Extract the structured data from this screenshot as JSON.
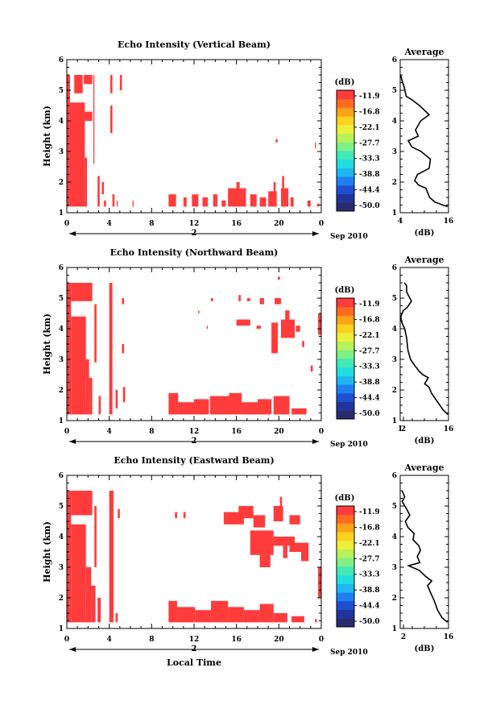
{
  "figure": {
    "x_axis_title": "Local Time",
    "date_label": "Sep 2010",
    "day_label": "2"
  },
  "colors": {
    "echo": "#ff3b3b",
    "colorbar": [
      "#2a2a6e",
      "#22339a",
      "#1f4fd0",
      "#1f7ff0",
      "#1fb6f2",
      "#20dde0",
      "#3fe9b8",
      "#7ff088",
      "#b7f25a",
      "#eaf03a",
      "#ffd21f",
      "#ffa21a",
      "#ff6a1f",
      "#ff3b3b"
    ]
  },
  "chart_data": [
    {
      "type": "heatmap",
      "title": "Echo Intensity (Vertical Beam)",
      "xlabel": "Local Time",
      "ylabel": "Height (km)",
      "xlim": [
        0,
        24
      ],
      "ylim": [
        1,
        6
      ],
      "x_ticks": [
        "0",
        "4",
        "8",
        "12",
        "16",
        "20",
        "0"
      ],
      "y_ticks": [
        "1",
        "2",
        "3",
        "4",
        "5",
        "6"
      ],
      "colorbar": {
        "label": "(dB)",
        "ticks": [
          "-11.9",
          "-16.8",
          "-22.1",
          "-27.7",
          "-33.3",
          "-38.8",
          "-44.4",
          "-50.0"
        ]
      },
      "echo_blocks": [
        [
          0,
          0.3,
          1.2,
          5.5
        ],
        [
          0.3,
          1.7,
          1.2,
          4.6
        ],
        [
          1.7,
          1.9,
          1.2,
          2.8
        ],
        [
          1.7,
          2.4,
          4.0,
          4.3
        ],
        [
          1.6,
          2.4,
          5.2,
          5.5
        ],
        [
          0.7,
          1.5,
          4.9,
          5.5
        ],
        [
          2.5,
          2.6,
          2.6,
          5.5
        ],
        [
          2.9,
          3.1,
          1.2,
          2.2
        ],
        [
          3.3,
          3.5,
          1.6,
          2.0
        ],
        [
          4.1,
          4.3,
          4.9,
          5.5
        ],
        [
          4.1,
          4.3,
          3.6,
          4.5
        ],
        [
          5.0,
          5.2,
          5.0,
          5.5
        ],
        [
          3.5,
          3.7,
          1.2,
          1.4
        ],
        [
          4.3,
          4.5,
          1.2,
          1.6
        ],
        [
          4.7,
          4.8,
          1.2,
          1.4
        ],
        [
          6.2,
          6.3,
          1.2,
          1.4
        ],
        [
          9.6,
          10.3,
          1.2,
          1.6
        ],
        [
          11.0,
          11.3,
          1.2,
          1.5
        ],
        [
          11.8,
          12.4,
          1.2,
          1.6
        ],
        [
          12.8,
          13.3,
          1.2,
          1.5
        ],
        [
          13.8,
          14.2,
          1.2,
          1.6
        ],
        [
          14.6,
          15.0,
          1.2,
          1.4
        ],
        [
          15.2,
          16.9,
          1.2,
          1.8
        ],
        [
          16.0,
          16.3,
          1.6,
          2.0
        ],
        [
          17.3,
          17.9,
          1.2,
          1.6
        ],
        [
          18.2,
          18.8,
          1.2,
          1.5
        ],
        [
          19.0,
          19.8,
          1.2,
          1.7
        ],
        [
          19.5,
          19.7,
          1.7,
          2.0
        ],
        [
          20.2,
          20.9,
          1.2,
          1.8
        ],
        [
          20.3,
          20.5,
          1.8,
          2.2
        ],
        [
          21.1,
          21.4,
          1.2,
          1.5
        ],
        [
          22.7,
          23.0,
          1.2,
          1.4
        ],
        [
          23.6,
          23.8,
          1.2,
          1.3
        ],
        [
          19.7,
          19.9,
          3.3,
          3.4
        ],
        [
          23.4,
          23.5,
          3.1,
          3.3
        ]
      ]
    },
    {
      "type": "heatmap",
      "title": "Echo Intensity (Northward Beam)",
      "xlabel": "Local Time",
      "ylabel": "Height (km)",
      "xlim": [
        0,
        24
      ],
      "ylim": [
        1,
        6
      ],
      "x_ticks": [
        "0",
        "4",
        "8",
        "12",
        "16",
        "20",
        "0"
      ],
      "y_ticks": [
        "1",
        "2",
        "3",
        "4",
        "5",
        "6"
      ],
      "colorbar": {
        "label": "(dB)",
        "ticks": [
          "-11.9",
          "-16.8",
          "-22.1",
          "-27.7",
          "-33.3",
          "-38.8",
          "-44.4",
          "-50.0"
        ]
      },
      "echo_blocks": [
        [
          0,
          0.4,
          1.2,
          5.5
        ],
        [
          0.4,
          1.8,
          1.2,
          4.4
        ],
        [
          0.4,
          2.4,
          4.9,
          5.5
        ],
        [
          1.8,
          2.1,
          1.2,
          3.0
        ],
        [
          2.1,
          2.4,
          1.2,
          2.4
        ],
        [
          2.6,
          2.8,
          2.9,
          4.8
        ],
        [
          3.0,
          3.2,
          1.2,
          1.8
        ],
        [
          4.0,
          4.3,
          1.2,
          5.5
        ],
        [
          4.6,
          4.8,
          1.4,
          2.0
        ],
        [
          5.3,
          5.5,
          1.6,
          2.1
        ],
        [
          5.2,
          5.4,
          4.8,
          5.0
        ],
        [
          5.2,
          5.4,
          3.2,
          3.5
        ],
        [
          9.6,
          10.5,
          1.2,
          1.9
        ],
        [
          10.5,
          12.0,
          1.2,
          1.6
        ],
        [
          12.0,
          13.4,
          1.2,
          1.7
        ],
        [
          13.5,
          15.3,
          1.2,
          1.8
        ],
        [
          15.3,
          16.5,
          1.2,
          1.9
        ],
        [
          16.5,
          18.0,
          1.2,
          1.6
        ],
        [
          18.0,
          19.3,
          1.2,
          1.7
        ],
        [
          19.5,
          21.0,
          1.2,
          1.8
        ],
        [
          21.2,
          22.6,
          1.2,
          1.4
        ],
        [
          19.6,
          20.2,
          4.8,
          5.0
        ],
        [
          17.0,
          17.3,
          4.9,
          5.0
        ],
        [
          18.2,
          18.6,
          4.8,
          5.0
        ],
        [
          16.2,
          16.4,
          4.9,
          5.1
        ],
        [
          13.6,
          13.8,
          4.9,
          5.0
        ],
        [
          12.4,
          12.5,
          4.5,
          4.6
        ],
        [
          13.2,
          13.3,
          4.0,
          4.1
        ],
        [
          16.0,
          17.3,
          4.1,
          4.3
        ],
        [
          17.9,
          18.3,
          4.0,
          4.1
        ],
        [
          19.3,
          19.9,
          3.2,
          4.2
        ],
        [
          20.2,
          21.5,
          3.7,
          4.3
        ],
        [
          21.6,
          22.0,
          3.9,
          4.1
        ],
        [
          20.6,
          21.0,
          4.3,
          4.6
        ],
        [
          23.7,
          24.0,
          3.8,
          4.5
        ],
        [
          22.2,
          22.4,
          3.4,
          3.6
        ],
        [
          23.0,
          23.2,
          2.6,
          2.8
        ],
        [
          19.9,
          20.1,
          5.6,
          5.7
        ]
      ]
    },
    {
      "type": "heatmap",
      "title": "Echo Intensity (Eastward Beam)",
      "xlabel": "Local Time",
      "ylabel": "Height (km)",
      "xlim": [
        0,
        24
      ],
      "ylim": [
        1,
        6
      ],
      "x_ticks": [
        "0",
        "4",
        "8",
        "12",
        "16",
        "20",
        "0"
      ],
      "y_ticks": [
        "1",
        "2",
        "3",
        "4",
        "5",
        "6"
      ],
      "colorbar": {
        "label": "(dB)",
        "ticks": [
          "-11.9",
          "-16.8",
          "-22.1",
          "-27.7",
          "-33.3",
          "-38.8",
          "-44.4",
          "-50.0"
        ]
      },
      "echo_blocks": [
        [
          0,
          0.4,
          1.2,
          5.5
        ],
        [
          0.4,
          1.8,
          1.2,
          4.4
        ],
        [
          0.4,
          2.4,
          4.7,
          5.5
        ],
        [
          1.8,
          2.3,
          1.2,
          3.0
        ],
        [
          2.3,
          2.7,
          1.2,
          2.4
        ],
        [
          2.6,
          2.8,
          3.0,
          5.0
        ],
        [
          2.9,
          3.2,
          1.2,
          2.0
        ],
        [
          4.0,
          4.4,
          1.2,
          5.5
        ],
        [
          4.8,
          5.0,
          4.6,
          4.9
        ],
        [
          4.6,
          4.8,
          1.2,
          1.5
        ],
        [
          9.6,
          10.4,
          1.2,
          1.9
        ],
        [
          10.4,
          12.1,
          1.2,
          1.7
        ],
        [
          12.1,
          13.6,
          1.2,
          1.6
        ],
        [
          13.6,
          15.2,
          1.2,
          1.9
        ],
        [
          15.2,
          16.7,
          1.2,
          1.7
        ],
        [
          16.7,
          18.2,
          1.2,
          1.6
        ],
        [
          18.2,
          19.5,
          1.2,
          1.8
        ],
        [
          19.5,
          20.8,
          1.2,
          1.5
        ],
        [
          21.2,
          22.4,
          1.2,
          1.4
        ],
        [
          23.4,
          23.6,
          1.2,
          1.3
        ],
        [
          10.2,
          10.4,
          4.6,
          4.8
        ],
        [
          11.0,
          11.2,
          4.6,
          4.8
        ],
        [
          14.8,
          16.7,
          4.4,
          4.8
        ],
        [
          16.2,
          17.6,
          4.6,
          5.0
        ],
        [
          17.6,
          18.7,
          4.3,
          4.7
        ],
        [
          19.5,
          20.4,
          4.5,
          5.0
        ],
        [
          20.1,
          20.3,
          4.9,
          5.3
        ],
        [
          21.0,
          22.0,
          4.4,
          4.7
        ],
        [
          17.3,
          19.5,
          3.4,
          4.2
        ],
        [
          19.5,
          21.5,
          3.7,
          4.0
        ],
        [
          21.0,
          22.8,
          3.5,
          3.8
        ],
        [
          22.1,
          22.8,
          3.2,
          3.5
        ],
        [
          18.2,
          19.2,
          3.0,
          3.4
        ],
        [
          20.4,
          20.8,
          3.3,
          3.7
        ],
        [
          23.7,
          24.0,
          2.0,
          3.0
        ]
      ]
    },
    {
      "type": "line",
      "title": "Average",
      "xlabel": "(dB)",
      "ylabel": "",
      "xlim": [
        4,
        16
      ],
      "ylim": [
        1,
        6
      ],
      "x_ticks": [
        "4",
        "16"
      ],
      "y_ticks": [
        "1",
        "2",
        "3",
        "4",
        "5",
        "6"
      ],
      "points": [
        [
          4.1,
          5.5
        ],
        [
          4.5,
          5.3
        ],
        [
          5.0,
          5.1
        ],
        [
          5.5,
          4.8
        ],
        [
          6.8,
          4.7
        ],
        [
          8.8,
          4.5
        ],
        [
          11.2,
          4.2
        ],
        [
          9.1,
          4.0
        ],
        [
          7.8,
          3.7
        ],
        [
          8.5,
          3.5
        ],
        [
          6.0,
          3.35
        ],
        [
          6.9,
          3.15
        ],
        [
          9.2,
          3.0
        ],
        [
          11.5,
          2.75
        ],
        [
          11.2,
          2.45
        ],
        [
          8.3,
          2.25
        ],
        [
          7.6,
          2.05
        ],
        [
          8.6,
          1.9
        ],
        [
          10.4,
          1.8
        ],
        [
          11.3,
          1.5
        ],
        [
          12.6,
          1.35
        ],
        [
          14.6,
          1.25
        ],
        [
          15.8,
          1.2
        ]
      ]
    },
    {
      "type": "line",
      "title": "Average",
      "xlabel": "(dB)",
      "ylabel": "",
      "xlim": [
        1,
        16
      ],
      "ylim": [
        1,
        6
      ],
      "x_ticks": [
        "1",
        "2",
        "16"
      ],
      "y_ticks": [
        "1",
        "2",
        "3",
        "4",
        "5",
        "6"
      ],
      "points": [
        [
          2.3,
          5.5
        ],
        [
          3.0,
          5.4
        ],
        [
          3.0,
          5.2
        ],
        [
          4.5,
          4.9
        ],
        [
          3.2,
          4.7
        ],
        [
          2.0,
          4.6
        ],
        [
          1.2,
          4.4
        ],
        [
          1.5,
          4.2
        ],
        [
          2.4,
          4.0
        ],
        [
          3.0,
          3.7
        ],
        [
          3.4,
          3.3
        ],
        [
          4.2,
          3.0
        ],
        [
          5.5,
          2.8
        ],
        [
          7.0,
          2.6
        ],
        [
          8.0,
          2.5
        ],
        [
          9.7,
          2.4
        ],
        [
          8.6,
          2.2
        ],
        [
          9.9,
          2.1
        ],
        [
          10.7,
          1.9
        ],
        [
          12.0,
          1.7
        ],
        [
          13.0,
          1.55
        ],
        [
          14.3,
          1.35
        ],
        [
          15.8,
          1.2
        ]
      ]
    },
    {
      "type": "line",
      "title": "Average",
      "xlabel": "(dB)",
      "ylabel": "",
      "xlim": [
        1,
        16
      ],
      "ylim": [
        1,
        6
      ],
      "x_ticks": [
        "2",
        "16"
      ],
      "y_ticks": [
        "1",
        "2",
        "3",
        "4",
        "5",
        "6"
      ],
      "points": [
        [
          1.6,
          5.5
        ],
        [
          2.4,
          5.3
        ],
        [
          1.6,
          5.15
        ],
        [
          3.0,
          4.9
        ],
        [
          4.0,
          4.7
        ],
        [
          2.6,
          4.5
        ],
        [
          3.4,
          4.3
        ],
        [
          5.3,
          4.1
        ],
        [
          5.0,
          3.9
        ],
        [
          6.8,
          3.7
        ],
        [
          7.3,
          3.55
        ],
        [
          6.3,
          3.35
        ],
        [
          7.1,
          3.15
        ],
        [
          3.6,
          3.05
        ],
        [
          6.9,
          2.9
        ],
        [
          8.9,
          2.7
        ],
        [
          10.8,
          2.55
        ],
        [
          9.5,
          2.4
        ],
        [
          10.3,
          2.2
        ],
        [
          11.6,
          1.9
        ],
        [
          12.6,
          1.6
        ],
        [
          14.0,
          1.35
        ],
        [
          15.7,
          1.2
        ]
      ]
    }
  ]
}
